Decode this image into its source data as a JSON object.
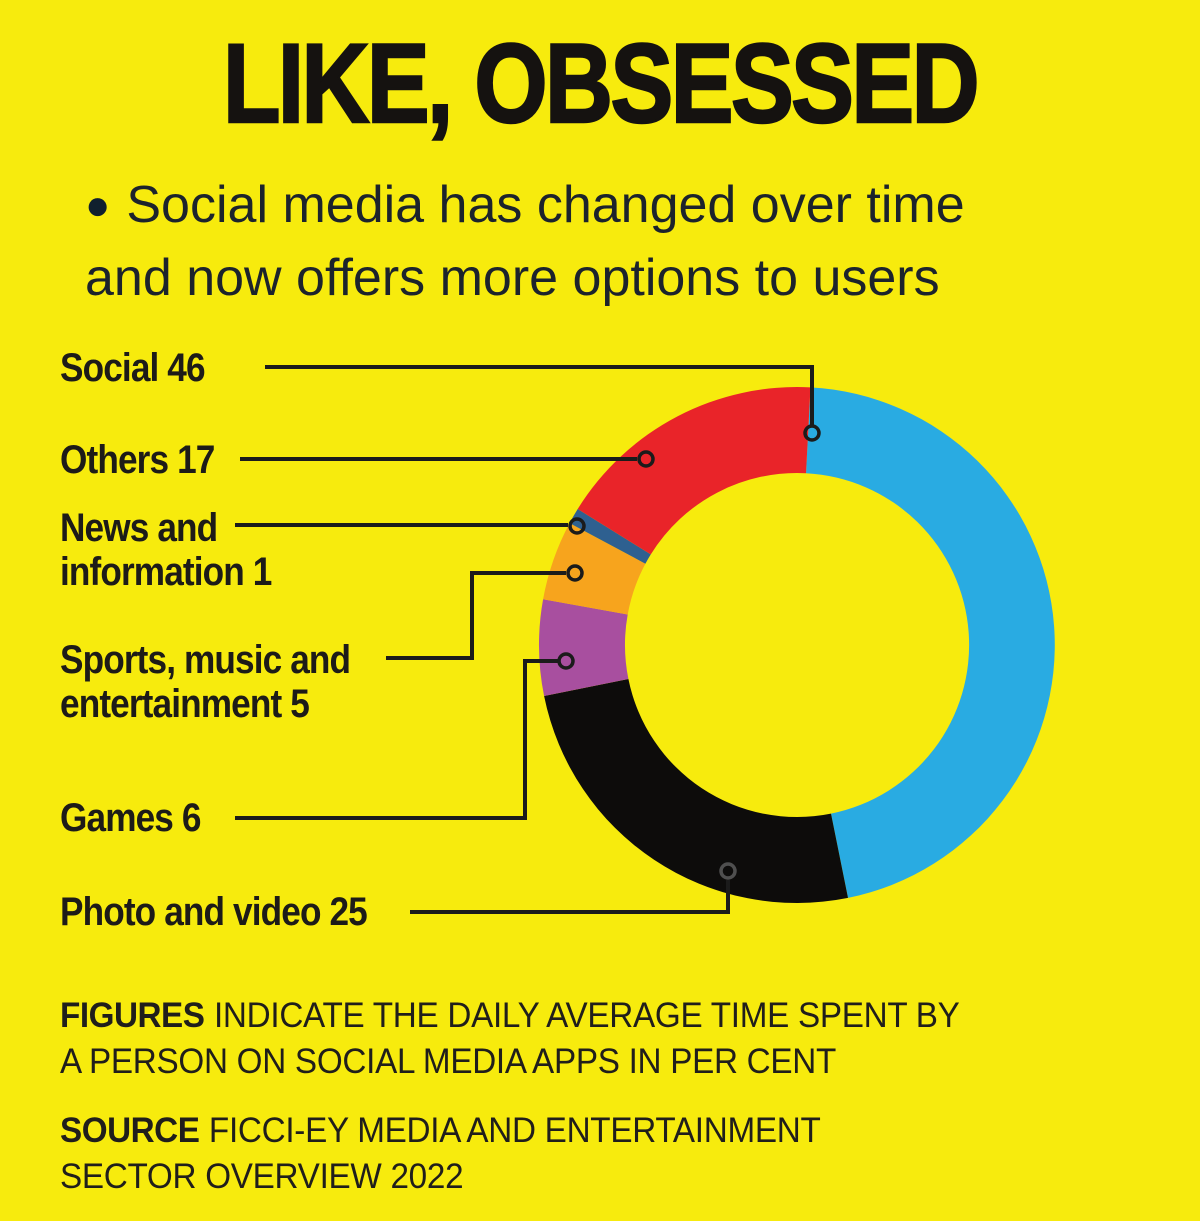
{
  "page": {
    "background_color": "#F7EB0D",
    "text_color": "#1D1B18"
  },
  "title": "LIKE, OBSESSED",
  "subtitle": {
    "bullet": "●",
    "line1": "Social media has changed over time",
    "line2": "and now offers more options to users"
  },
  "callouts": {
    "social": {
      "line1": "Social 46"
    },
    "others": {
      "line1": "Others 17"
    },
    "news": {
      "line1": "News and",
      "line2": "information 1"
    },
    "sports": {
      "line1": "Sports, music and",
      "line2": "entertainment 5"
    },
    "games": {
      "line1": "Games 6"
    },
    "photo": {
      "line1": "Photo and video 25"
    }
  },
  "chart_data": {
    "type": "pie",
    "variant": "donut",
    "title": "Daily average time spent by a person on social media apps",
    "value_unit": "per cent",
    "direction": "clockwise",
    "start_angle_deg": 3,
    "total": 100,
    "legend_position": "left-callouts",
    "segments": [
      {
        "label": "Social",
        "value": 46,
        "color": "#29ABE2"
      },
      {
        "label": "Photo and video",
        "value": 25,
        "color": "#0D0C0B"
      },
      {
        "label": "Games",
        "value": 6,
        "color": "#A84F9F"
      },
      {
        "label": "Sports, music and entertainment",
        "value": 5,
        "color": "#F7A41D"
      },
      {
        "label": "News and information",
        "value": 1,
        "color": "#2E6090"
      },
      {
        "label": "Others",
        "value": 17,
        "color": "#E92429"
      }
    ]
  },
  "footer": {
    "figures_label": "FIGURES",
    "figures_line1": "INDICATE THE DAILY AVERAGE TIME SPENT BY",
    "figures_line2": "A PERSON ON SOCIAL MEDIA APPS IN PER CENT",
    "source_label": "SOURCE",
    "source_line1": "FICCI-EY MEDIA AND ENTERTAINMENT",
    "source_line2": "SECTOR OVERVIEW 2022"
  }
}
